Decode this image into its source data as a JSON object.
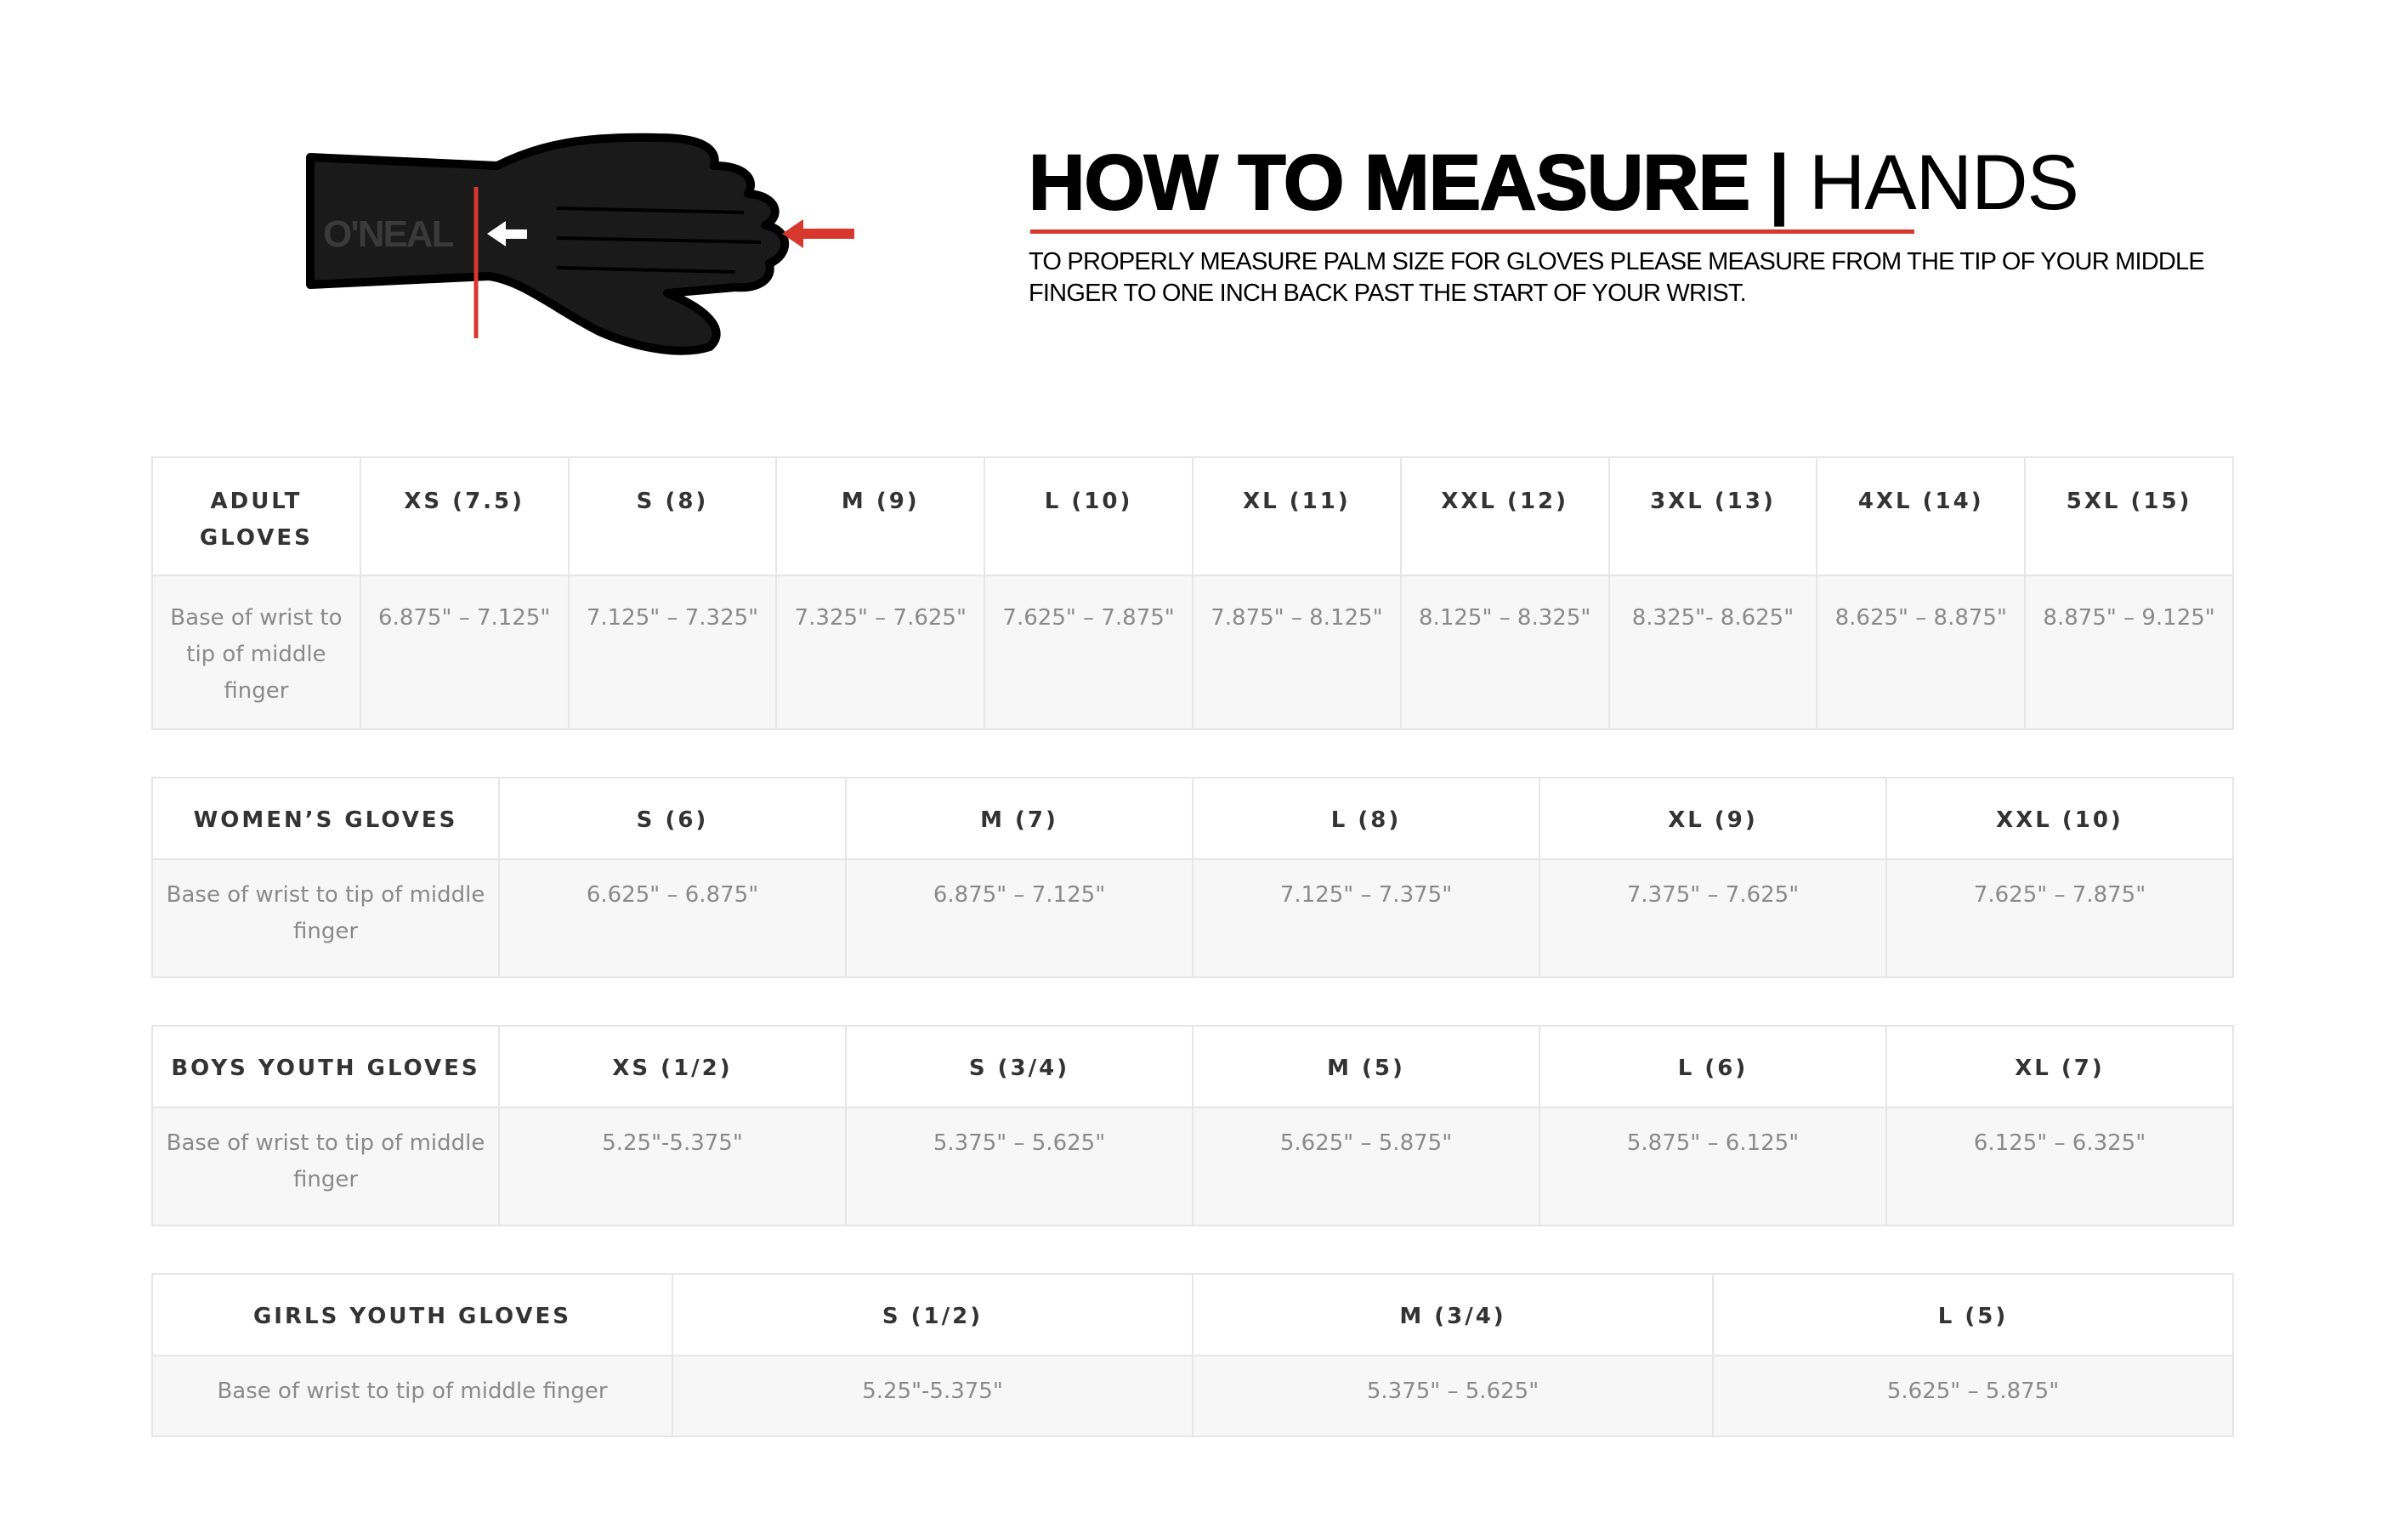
{
  "header": {
    "title_bold": "HOW TO MEASURE",
    "separator": "|",
    "title_light": "HANDS",
    "description": "TO PROPERLY MEASURE PALM SIZE FOR GLOVES PLEASE MEASURE FROM THE TIP OF  YOUR MIDDLE FINGER TO ONE INCH BACK PAST THE START OF YOUR WRIST.",
    "logo_text": "O'NEAL",
    "accent_color": "#d7372c"
  },
  "tables": [
    {
      "name": "adult-gloves",
      "header": [
        "ADULT GLOVES",
        "XS (7.5)",
        "S (8)",
        "M (9)",
        "L (10)",
        "XL (11)",
        "XXL (12)",
        "3XL (13)",
        "4XL (14)",
        "5XL (15)"
      ],
      "row": [
        "Base of wrist to tip of middle finger",
        "6.875\" – 7.125\"",
        "7.125\" – 7.325\"",
        "7.325\" – 7.625\"",
        "7.625\" – 7.875\"",
        "7.875\" – 8.125\"",
        "8.125\" – 8.325\"",
        "8.325\"- 8.625\"",
        "8.625\" – 8.875\"",
        "8.875\" – 9.125\""
      ]
    },
    {
      "name": "womens-gloves",
      "header": [
        "WOMEN’S GLOVES",
        "S (6)",
        "M (7)",
        "L (8)",
        "XL (9)",
        "XXL (10)"
      ],
      "row": [
        "Base of wrist to tip of middle finger",
        "6.625\" – 6.875\"",
        "6.875\" – 7.125\"",
        "7.125\" – 7.375\"",
        "7.375\" – 7.625\"",
        "7.625\" – 7.875\""
      ]
    },
    {
      "name": "boys-youth-gloves",
      "header": [
        "BOYS YOUTH GLOVES",
        "XS (1/2)",
        "S (3/4)",
        "M (5)",
        "L (6)",
        "XL (7)"
      ],
      "row": [
        "Base of wrist to tip of middle finger",
        "5.25\"-5.375\"",
        "5.375\" – 5.625\"",
        "5.625\" – 5.875\"",
        "5.875\" – 6.125\"",
        "6.125\" – 6.325\""
      ]
    },
    {
      "name": "girls-youth-gloves",
      "header": [
        "GIRLS YOUTH GLOVES",
        "S (1/2)",
        "M (3/4)",
        "L (5)"
      ],
      "row": [
        "Base of wrist to tip of middle finger",
        "5.25\"-5.375\"",
        "5.375\" – 5.625\"",
        "5.625\" – 5.875\""
      ]
    }
  ]
}
